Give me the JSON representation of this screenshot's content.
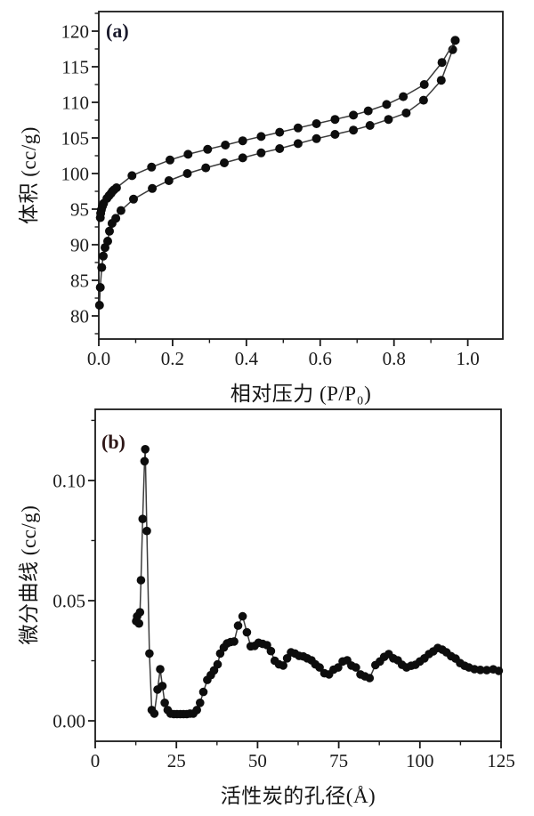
{
  "page": {
    "background": "#ffffff"
  },
  "panels": {
    "a": {
      "label": "(a)",
      "label_color": "#1a1a2c",
      "xlabel": "相对压力 (P/P₀)",
      "ylabel": "体积 (cc/g)"
    },
    "b": {
      "label": "(b)",
      "label_color": "#2e1717",
      "xlabel": "活性炭的孔径(Å)",
      "ylabel": "微分曲线 (cc/g)"
    }
  },
  "chart_data": [
    {
      "id": "a",
      "type": "line",
      "title": "",
      "panel_label": "(a)",
      "xlabel": "相对压力 (P/P₀)",
      "ylabel": "体积 (cc/g)",
      "xlim": [
        0,
        1.095
      ],
      "ylim": [
        76.75,
        122.75
      ],
      "grid": false,
      "legend": null,
      "marker_color": "#0d0d0d",
      "line_color": "#3c3c3c",
      "x_major_ticks": [
        0.0,
        0.2,
        0.4,
        0.6,
        0.8,
        1.0
      ],
      "x_tick_labels": [
        "0.0",
        "0.2",
        "0.4",
        "0.6",
        "0.8",
        "1.0"
      ],
      "x_minor_ticks": [
        0.1,
        0.3,
        0.5,
        0.7,
        0.9
      ],
      "y_major_ticks": [
        80,
        85,
        90,
        95,
        100,
        105,
        110,
        115,
        120
      ],
      "y_tick_labels": [
        "80",
        "85",
        "90",
        "95",
        "100",
        "105",
        "110",
        "115",
        "120"
      ],
      "y_minor_ticks": [
        77.5,
        82.5,
        87.5,
        92.5,
        97.5,
        102.5,
        107.5,
        112.5,
        117.5,
        122.5
      ],
      "series": [
        {
          "name": "adsorption_branch_lower",
          "x": [
            0.002,
            0.004,
            0.008,
            0.012,
            0.017,
            0.024,
            0.029,
            0.036,
            0.046,
            0.06,
            0.094,
            0.145,
            0.19,
            0.24,
            0.29,
            0.34,
            0.39,
            0.44,
            0.49,
            0.54,
            0.59,
            0.64,
            0.69,
            0.735,
            0.785,
            0.833,
            0.88,
            0.928,
            0.959,
            0.966
          ],
          "y": [
            81.5,
            84.0,
            86.8,
            88.4,
            89.6,
            90.5,
            91.9,
            93.0,
            93.7,
            94.8,
            96.4,
            97.9,
            99.0,
            100.0,
            100.8,
            101.5,
            102.2,
            102.9,
            103.5,
            104.2,
            104.9,
            105.5,
            106.1,
            106.75,
            107.6,
            108.5,
            110.3,
            113.1,
            117.4,
            118.7
          ]
        },
        {
          "name": "desorption_branch_upper",
          "x": [
            0.004,
            0.005,
            0.007,
            0.01,
            0.013,
            0.022,
            0.028,
            0.033,
            0.037,
            0.041,
            0.048,
            0.09,
            0.143,
            0.193,
            0.242,
            0.295,
            0.343,
            0.39,
            0.44,
            0.49,
            0.54,
            0.59,
            0.64,
            0.69,
            0.73,
            0.78,
            0.825,
            0.882,
            0.93,
            0.966
          ],
          "y": [
            93.8,
            94.4,
            94.9,
            95.4,
            95.8,
            96.5,
            96.9,
            97.2,
            97.5,
            97.7,
            98.0,
            99.7,
            100.9,
            101.9,
            102.7,
            103.4,
            104.0,
            104.6,
            105.2,
            105.8,
            106.4,
            107.0,
            107.6,
            108.2,
            108.8,
            109.7,
            110.8,
            112.5,
            115.6,
            118.7
          ]
        }
      ]
    },
    {
      "id": "b",
      "type": "line",
      "title": "",
      "panel_label": "(b)",
      "xlabel": "活性炭的孔径(Å)",
      "ylabel": "微分曲线 (cc/g)",
      "xlim": [
        0,
        125
      ],
      "ylim": [
        -0.0085,
        0.1296
      ],
      "grid": false,
      "legend": null,
      "marker_color": "#0d0d0d",
      "line_color": "#3c3c3c",
      "x_major_ticks": [
        0,
        25,
        50,
        75,
        100,
        125
      ],
      "x_tick_labels": [
        "0",
        "25",
        "50",
        "75",
        "100",
        "125"
      ],
      "x_minor_ticks": [
        12.5,
        37.5,
        62.5,
        87.5,
        112.5
      ],
      "y_major_ticks": [
        0.0,
        0.05,
        0.1
      ],
      "y_tick_labels": [
        "0.00",
        "0.05",
        "0.10"
      ],
      "y_minor_ticks": [
        0.025,
        0.075,
        0.125
      ],
      "series": [
        {
          "name": "pore_size_distribution",
          "x": [
            12.6,
            12.9,
            13.5,
            13.8,
            14.1,
            14.6,
            15.2,
            15.4,
            15.9,
            16.7,
            17.4,
            18.2,
            19.2,
            20.0,
            20.7,
            21.4,
            22.3,
            23.2,
            24.2,
            25.2,
            26.2,
            27.2,
            28.2,
            29.2,
            30.2,
            31.3,
            32.3,
            33.3,
            34.5,
            35.6,
            36.6,
            37.7,
            38.5,
            39.6,
            40.6,
            41.7,
            42.8,
            44.0,
            45.4,
            46.7,
            47.9,
            49.1,
            50.3,
            51.6,
            52.9,
            54.1,
            55.3,
            56.6,
            57.9,
            59.1,
            60.3,
            61.5,
            62.8,
            64.1,
            65.3,
            66.6,
            67.8,
            69.1,
            70.6,
            72.0,
            73.4,
            74.8,
            76.2,
            77.6,
            78.9,
            80.3,
            81.7,
            83.1,
            84.5,
            86.3,
            87.7,
            89.0,
            90.4,
            91.8,
            93.2,
            94.5,
            95.9,
            97.3,
            98.6,
            100.0,
            101.4,
            102.8,
            104.1,
            105.5,
            106.9,
            108.2,
            109.6,
            111.0,
            112.4,
            113.8,
            115.1,
            116.8,
            118.6,
            120.6,
            122.6,
            124.3
          ],
          "y": [
            0.0415,
            0.0435,
            0.0405,
            0.0452,
            0.0585,
            0.084,
            0.108,
            0.113,
            0.079,
            0.028,
            0.0045,
            0.003,
            0.013,
            0.0215,
            0.0145,
            0.0075,
            0.0045,
            0.003,
            0.0028,
            0.0028,
            0.0028,
            0.0028,
            0.0028,
            0.003,
            0.003,
            0.0045,
            0.0075,
            0.012,
            0.017,
            0.019,
            0.021,
            0.0235,
            0.028,
            0.0305,
            0.0322,
            0.0328,
            0.033,
            0.0396,
            0.0435,
            0.0368,
            0.031,
            0.0312,
            0.0325,
            0.032,
            0.0315,
            0.029,
            0.025,
            0.0235,
            0.023,
            0.026,
            0.0285,
            0.028,
            0.027,
            0.0268,
            0.026,
            0.0252,
            0.0235,
            0.0222,
            0.0198,
            0.0193,
            0.0213,
            0.0222,
            0.0247,
            0.0252,
            0.023,
            0.0222,
            0.0193,
            0.0185,
            0.0178,
            0.0232,
            0.0247,
            0.0266,
            0.0278,
            0.026,
            0.0252,
            0.0233,
            0.0222,
            0.0229,
            0.0233,
            0.0247,
            0.026,
            0.0278,
            0.0289,
            0.0303,
            0.0296,
            0.0285,
            0.0269,
            0.0259,
            0.024,
            0.0229,
            0.0222,
            0.0215,
            0.0212,
            0.0211,
            0.0214,
            0.0208
          ]
        }
      ]
    }
  ]
}
